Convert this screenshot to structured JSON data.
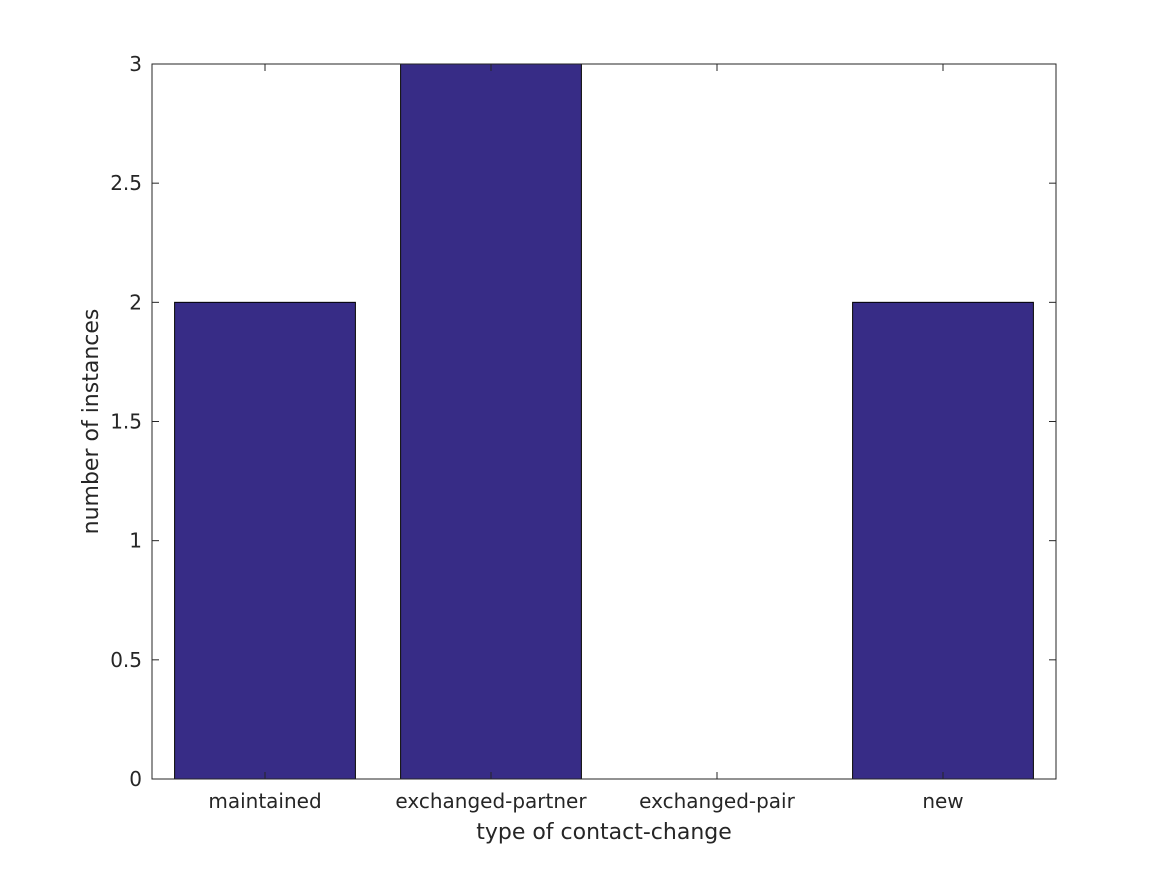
{
  "chart_data": {
    "type": "bar",
    "title": "",
    "xlabel": "type of contact-change",
    "ylabel": "number of instances",
    "categories": [
      "maintained",
      "exchanged-partner",
      "exchanged-pair",
      "new"
    ],
    "values": [
      2,
      3,
      0,
      2
    ],
    "ylim": [
      0,
      3
    ],
    "yticks": [
      "0",
      "0.5",
      "1",
      "1.5",
      "2",
      "2.5",
      "3"
    ],
    "grid": false,
    "bar_color": "#372C86"
  }
}
